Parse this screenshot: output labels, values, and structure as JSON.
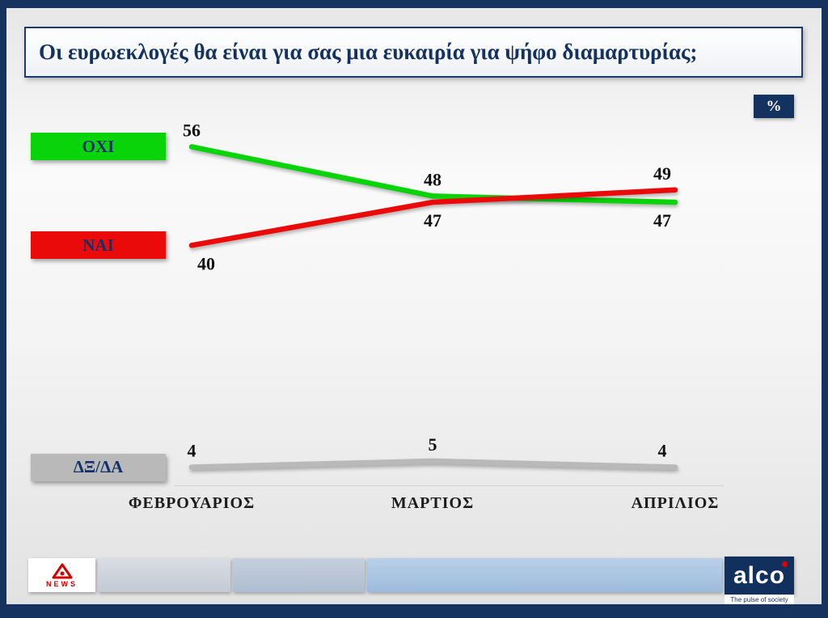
{
  "chart_data": {
    "type": "line",
    "title": "Οι ευρωεκλογές θα είναι για σας μια ευκαιρία για ψήφο διαμαρτυρίας;",
    "unit_badge": "%",
    "categories": [
      "ΦΕΒΡΟΥΑΡΙΟΣ",
      "ΜΑΡΤΙΟΣ",
      "ΑΠΡΙΛΙΟΣ"
    ],
    "series": [
      {
        "name": "ΟΧΙ",
        "color": "#09d409",
        "values": [
          56,
          48,
          47
        ],
        "label_placement": [
          "above",
          "above",
          "below"
        ]
      },
      {
        "name": "ΝΑΙ",
        "color": "#ea0a0a",
        "values": [
          40,
          47,
          49
        ],
        "label_placement": [
          "below",
          "below",
          "above"
        ]
      },
      {
        "name": "ΔΞ/ΔΑ",
        "color": "#b9b9b9",
        "values": [
          4,
          5,
          4
        ],
        "label_placement": [
          "above",
          "above",
          "above"
        ]
      }
    ],
    "ylim": [
      0,
      60
    ],
    "legend_position": "left",
    "grid": false
  },
  "footer": {
    "alpha_news_label": "NEWS",
    "alco_logo": "alco",
    "alco_tagline": "The pulse of society"
  },
  "colors": {
    "frame_navy": "#16335f",
    "title_navy": "#14325f"
  }
}
